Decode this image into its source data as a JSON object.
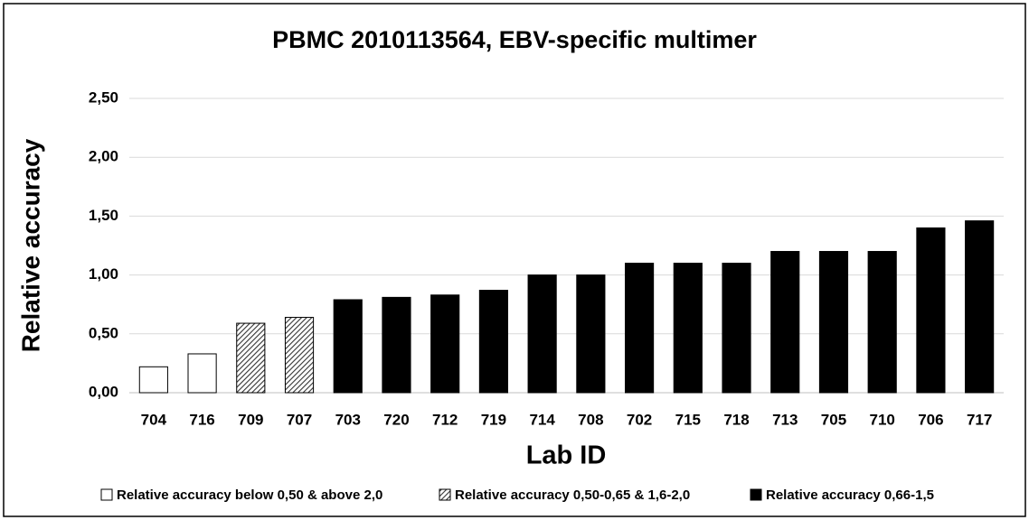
{
  "chart_data": {
    "type": "bar",
    "title": "PBMC 2010113564, EBV-specific multimer",
    "x_label": "Lab ID",
    "y_label": "Relative accuracy",
    "categories": [
      "704",
      "716",
      "709",
      "707",
      "703",
      "720",
      "712",
      "719",
      "714",
      "708",
      "702",
      "715",
      "718",
      "713",
      "705",
      "710",
      "706",
      "717"
    ],
    "series": [
      {
        "name": "Relative accuracy below 0,50 & above 2,0",
        "color": "#ffffff",
        "pattern": "solid",
        "values": [
          0.22,
          0.33,
          null,
          null,
          null,
          null,
          null,
          null,
          null,
          null,
          null,
          null,
          null,
          null,
          null,
          null,
          null,
          null
        ]
      },
      {
        "name": "Relative accuracy 0,50-0,65 & 1,6-2,0",
        "color": "#888888",
        "pattern": "diagonal-hatch",
        "values": [
          null,
          null,
          0.59,
          0.64,
          null,
          null,
          null,
          null,
          null,
          null,
          null,
          null,
          null,
          null,
          null,
          null,
          null,
          null
        ]
      },
      {
        "name": "Relative accuracy 0,66-1,5",
        "color": "#000000",
        "pattern": "solid",
        "values": [
          null,
          null,
          null,
          null,
          0.79,
          0.81,
          0.83,
          0.87,
          1.0,
          1.0,
          1.1,
          1.1,
          1.1,
          1.2,
          1.2,
          1.2,
          1.4,
          1.46
        ]
      }
    ],
    "ylim": [
      0,
      2.5
    ],
    "yticks": [
      {
        "value": 0,
        "label": "0,00"
      },
      {
        "value": 0.5,
        "label": "0,50"
      },
      {
        "value": 1,
        "label": "1,00"
      },
      {
        "value": 1.5,
        "label": "1,50"
      },
      {
        "value": 2,
        "label": "2,00"
      },
      {
        "value": 2.5,
        "label": "2,50"
      }
    ],
    "grid": true,
    "legend": "bottom"
  }
}
